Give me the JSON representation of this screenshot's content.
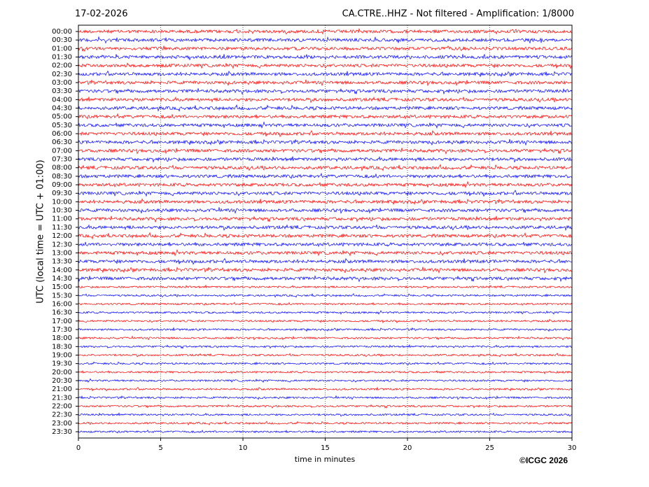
{
  "chart_data": {
    "type": "helicorder",
    "date": "17-02-2026",
    "title": "CA.CTRE..HHZ - Not filtered - Amplification: 1/8000",
    "ylabel": "UTC (local time = UTC + 01:00)",
    "xlabel": "time in minutes",
    "credit": "©ICGC 2026",
    "categories": [
      "00:00",
      "00:30",
      "01:00",
      "01:30",
      "02:00",
      "02:30",
      "03:00",
      "03:30",
      "04:00",
      "04:30",
      "05:00",
      "05:30",
      "06:00",
      "06:30",
      "07:00",
      "07:30",
      "08:00",
      "08:30",
      "09:00",
      "09:30",
      "10:00",
      "10:30",
      "11:00",
      "11:30",
      "12:00",
      "12:30",
      "13:00",
      "13:30",
      "14:00",
      "14:30",
      "15:00",
      "15:30",
      "16:00",
      "16:30",
      "17:00",
      "17:30",
      "18:00",
      "18:30",
      "19:00",
      "19:30",
      "20:00",
      "20:30",
      "21:00",
      "21:30",
      "22:00",
      "22:30",
      "23:00",
      "23:30"
    ],
    "xlim": [
      0,
      30
    ],
    "xticks": [
      0,
      5,
      10,
      15,
      20,
      25,
      30
    ],
    "grid": true,
    "colors": [
      "#ff0000",
      "#0000ff"
    ]
  }
}
